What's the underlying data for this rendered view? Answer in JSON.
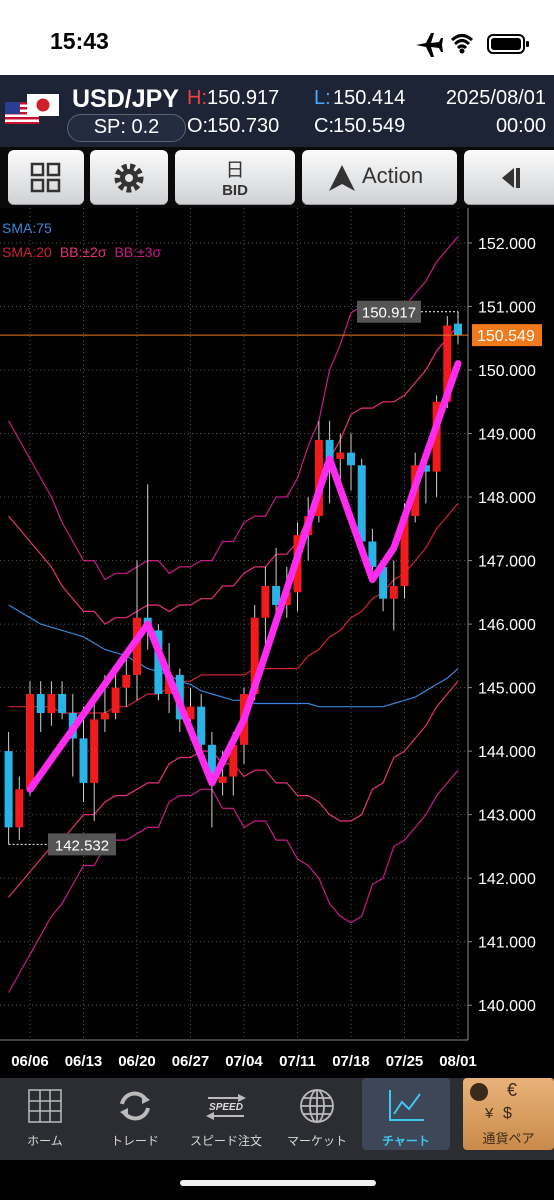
{
  "status": {
    "time": "15:43"
  },
  "header": {
    "pair": "USD/JPY",
    "spread": "SP: 0.2",
    "high_key": "H:",
    "high": "150.917",
    "low_key": "L:",
    "low": "150.414",
    "open_key": "O:",
    "open": "150.730",
    "close_key": "C:",
    "close": "150.549",
    "date": "2025/08/01",
    "time": "00:00"
  },
  "toolbar": {
    "period": "日",
    "price_side": "BID",
    "action": "Action"
  },
  "chart_data": {
    "type": "candlestick",
    "categories": [
      null,
      null,
      "06/06",
      null,
      null,
      null,
      null,
      "06/13",
      null,
      null,
      null,
      null,
      "06/20",
      null,
      null,
      null,
      null,
      "06/27",
      null,
      null,
      null,
      null,
      "07/04",
      null,
      null,
      null,
      null,
      "07/11",
      null,
      null,
      null,
      null,
      "07/18",
      null,
      null,
      null,
      null,
      "07/25",
      null,
      null,
      null,
      null,
      "08/01"
    ],
    "open": [
      144.0,
      142.8,
      143.4,
      144.9,
      144.6,
      144.9,
      144.6,
      144.2,
      143.5,
      144.5,
      144.6,
      145.0,
      145.2,
      146.1,
      145.9,
      144.9,
      145.2,
      144.5,
      144.7,
      144.1,
      143.5,
      143.6,
      144.1,
      144.9,
      146.1,
      146.6,
      146.3,
      146.5,
      147.4,
      147.7,
      148.9,
      148.6,
      148.7,
      148.5,
      147.3,
      146.9,
      146.4,
      146.6,
      147.7,
      148.5,
      148.4,
      149.5,
      150.73
    ],
    "high": [
      144.3,
      143.6,
      145.1,
      145.1,
      145.1,
      145.1,
      144.9,
      144.7,
      144.9,
      145.2,
      145.3,
      145.5,
      147.0,
      148.2,
      146.0,
      145.7,
      145.3,
      145.0,
      144.9,
      144.3,
      144.0,
      144.3,
      145.0,
      146.3,
      146.9,
      147.2,
      146.9,
      147.6,
      148.0,
      149.2,
      149.2,
      149.0,
      149.0,
      148.6,
      147.5,
      147.0,
      147.0,
      147.9,
      148.7,
      148.7,
      149.6,
      150.85,
      150.917
    ],
    "low": [
      142.532,
      142.6,
      143.3,
      144.3,
      144.4,
      144.5,
      143.6,
      143.2,
      142.9,
      144.3,
      144.5,
      144.7,
      144.8,
      145.6,
      144.8,
      144.6,
      144.3,
      144.2,
      143.9,
      142.8,
      143.3,
      143.3,
      143.8,
      144.8,
      145.6,
      146.2,
      146.1,
      146.2,
      147.0,
      147.6,
      147.9,
      148.2,
      148.1,
      147.1,
      146.8,
      146.2,
      145.9,
      146.4,
      147.6,
      147.9,
      148.0,
      149.4,
      150.414
    ],
    "close": [
      142.8,
      143.4,
      144.9,
      144.6,
      144.9,
      144.6,
      144.2,
      143.5,
      144.5,
      144.6,
      145.0,
      145.2,
      146.1,
      145.9,
      144.9,
      145.2,
      144.5,
      144.7,
      144.1,
      143.5,
      143.6,
      144.1,
      144.9,
      146.1,
      146.6,
      146.3,
      146.5,
      147.4,
      147.7,
      148.9,
      148.6,
      148.7,
      148.5,
      147.3,
      146.9,
      146.4,
      146.6,
      147.7,
      148.5,
      148.4,
      149.5,
      150.7,
      150.549
    ],
    "up_color": "#f01c1c",
    "down_color": "#2ab4e6",
    "lines": [
      {
        "name": "SMA:75",
        "color": "#3a86d6",
        "values": [
          146.3,
          146.2,
          146.1,
          146.0,
          145.95,
          145.9,
          145.85,
          145.8,
          145.7,
          145.6,
          145.55,
          145.5,
          145.4,
          145.3,
          145.25,
          145.2,
          145.1,
          145.05,
          144.95,
          144.9,
          144.85,
          144.8,
          144.8,
          144.75,
          144.75,
          144.75,
          144.75,
          144.75,
          144.75,
          144.7,
          144.7,
          144.7,
          144.7,
          144.7,
          144.7,
          144.7,
          144.75,
          144.8,
          144.85,
          144.95,
          145.05,
          145.15,
          145.3
        ]
      },
      {
        "name": "SMA:20",
        "color": "#d02232",
        "values": [
          144.7,
          144.7,
          144.7,
          144.7,
          144.7,
          144.6,
          144.6,
          144.6,
          144.6,
          144.6,
          144.7,
          144.7,
          144.8,
          144.9,
          144.9,
          145.0,
          145.1,
          145.1,
          145.2,
          145.2,
          145.2,
          145.2,
          145.2,
          145.3,
          145.3,
          145.3,
          145.3,
          145.3,
          145.5,
          145.6,
          145.8,
          145.9,
          146.1,
          146.2,
          146.4,
          146.5,
          146.7,
          146.8,
          147.0,
          147.2,
          147.5,
          147.7,
          147.9
        ]
      }
    ],
    "bands": [
      {
        "name": "BB:±2σ",
        "color": "#e8307c",
        "upper": [
          147.7,
          147.5,
          147.3,
          147.1,
          146.9,
          146.6,
          146.4,
          146.2,
          146.2,
          146.0,
          146.1,
          146.1,
          146.2,
          146.3,
          146.3,
          146.2,
          146.3,
          146.3,
          146.4,
          146.4,
          146.6,
          146.6,
          146.8,
          146.9,
          146.9,
          147.1,
          147.1,
          147.3,
          147.7,
          148.0,
          148.6,
          148.9,
          149.3,
          149.4,
          149.4,
          149.5,
          149.5,
          149.6,
          149.8,
          150.0,
          150.3,
          150.5,
          150.7
        ],
        "lower": [
          141.7,
          141.9,
          142.1,
          142.3,
          142.5,
          142.6,
          142.8,
          143.0,
          143.0,
          143.2,
          143.3,
          143.3,
          143.4,
          143.5,
          143.5,
          143.8,
          143.9,
          143.9,
          144.0,
          144.0,
          143.8,
          143.8,
          143.6,
          143.7,
          143.7,
          143.5,
          143.5,
          143.3,
          143.3,
          143.2,
          143.0,
          142.9,
          142.9,
          143.0,
          143.4,
          143.5,
          143.9,
          144.0,
          144.2,
          144.4,
          144.7,
          144.9,
          145.1
        ]
      },
      {
        "name": "BB:±3σ",
        "color": "#c81c86",
        "upper": [
          149.2,
          148.9,
          148.6,
          148.3,
          148.0,
          147.6,
          147.3,
          147.0,
          147.0,
          146.7,
          146.8,
          146.8,
          146.9,
          147.0,
          147.0,
          146.8,
          146.9,
          146.9,
          147.0,
          147.0,
          147.3,
          147.3,
          147.6,
          147.7,
          147.7,
          148.0,
          148.0,
          148.3,
          148.8,
          149.2,
          150.0,
          150.4,
          150.9,
          151.0,
          150.9,
          151.0,
          150.9,
          151.0,
          151.2,
          151.4,
          151.7,
          151.9,
          152.1
        ],
        "lower": [
          140.2,
          140.5,
          140.8,
          141.1,
          141.4,
          141.6,
          141.9,
          142.2,
          142.2,
          142.5,
          142.6,
          142.6,
          142.7,
          142.8,
          142.8,
          143.2,
          143.3,
          143.3,
          143.4,
          143.4,
          143.1,
          143.1,
          142.8,
          142.9,
          142.9,
          142.6,
          142.6,
          142.3,
          142.2,
          142.0,
          141.6,
          141.4,
          141.3,
          141.4,
          141.9,
          142.0,
          142.5,
          142.6,
          142.8,
          143.0,
          143.3,
          143.5,
          143.7
        ]
      }
    ],
    "trend_line": {
      "color": "#ff2cf0",
      "x": [
        2,
        13,
        19,
        22,
        30,
        34,
        36,
        42
      ],
      "values": [
        143.4,
        146.0,
        143.5,
        144.5,
        148.6,
        146.7,
        147.2,
        150.1
      ]
    },
    "high_marker": {
      "value": 150.917,
      "label": "150.917"
    },
    "low_marker": {
      "value": 142.532,
      "label": "142.532"
    },
    "last_price": {
      "value": 150.549,
      "label": "150.549",
      "color": "#f07a1c"
    },
    "ylim": [
      139.5,
      152.55
    ],
    "yticks": [
      {
        "value": 140,
        "label": "140.000"
      },
      {
        "value": 141,
        "label": "141.000"
      },
      {
        "value": 142,
        "label": "142.000"
      },
      {
        "value": 143,
        "label": "143.000"
      },
      {
        "value": 144,
        "label": "144.000"
      },
      {
        "value": 145,
        "label": "145.000"
      },
      {
        "value": 146,
        "label": "146.000"
      },
      {
        "value": 147,
        "label": "147.000"
      },
      {
        "value": 148,
        "label": "148.000"
      },
      {
        "value": 149,
        "label": "149.000"
      },
      {
        "value": 150,
        "label": "150.000"
      },
      {
        "value": 151,
        "label": "151.000"
      },
      {
        "value": 152,
        "label": "152.000"
      }
    ],
    "grid": true
  },
  "tabs": [
    {
      "label": "ホーム"
    },
    {
      "label": "トレード"
    },
    {
      "label": "スピード注文",
      "icon": "SPEED"
    },
    {
      "label": "マーケット"
    },
    {
      "label": "チャート"
    },
    {
      "label": "通貨ペア"
    }
  ]
}
